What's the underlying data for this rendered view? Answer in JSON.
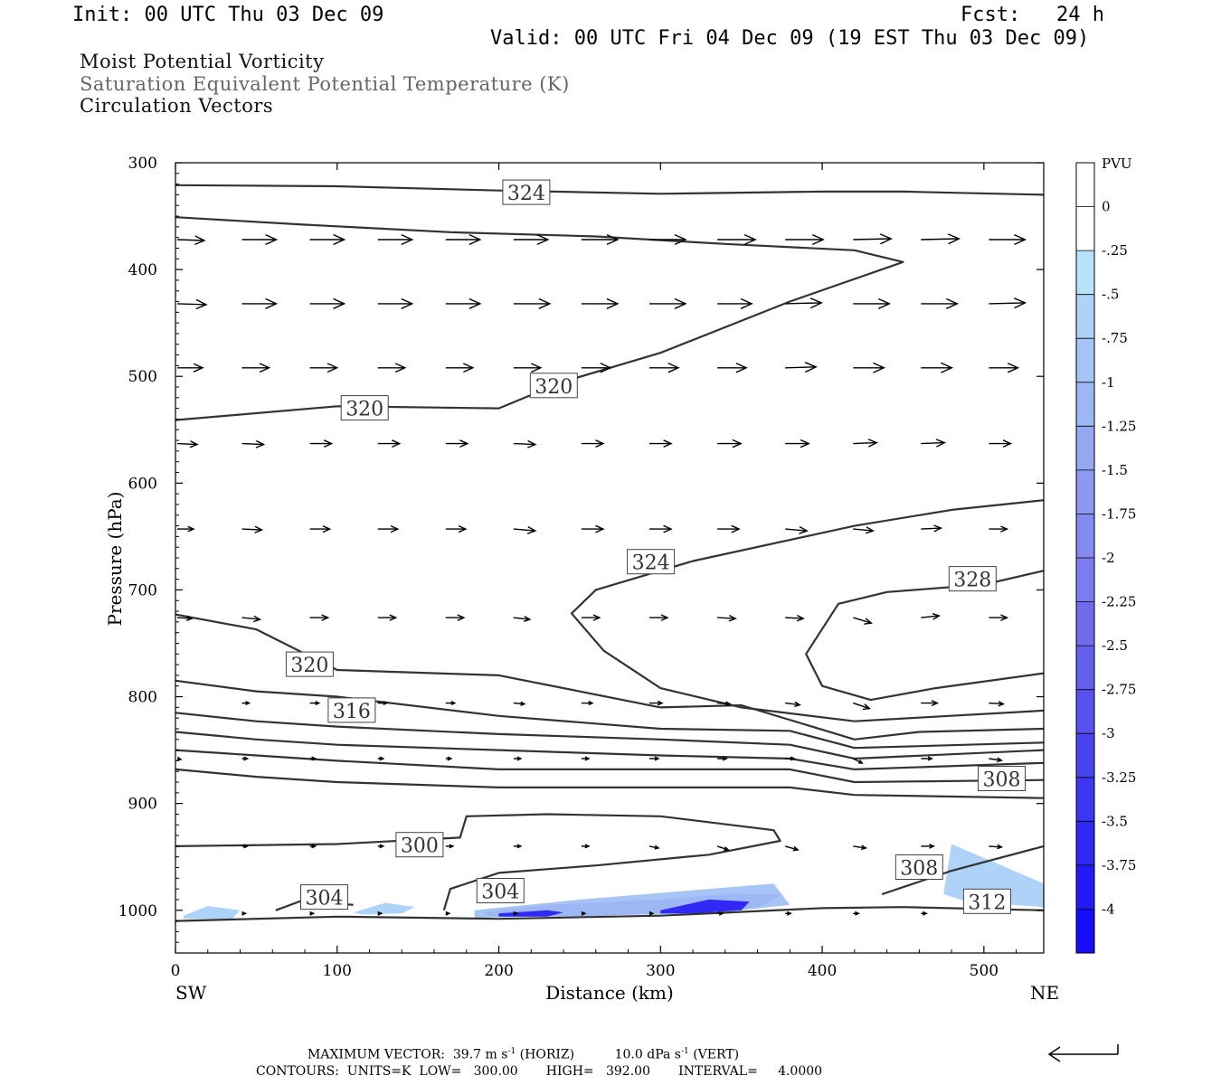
{
  "header": {
    "init": "Init: 00 UTC Thu 03 Dec 09",
    "fcst": "Fcst:   24 h",
    "valid": "Valid: 00 UTC Fri 04 Dec 09 (19 EST Thu 03 Dec 09)"
  },
  "titles": {
    "line1": "Moist Potential Vorticity",
    "line2": "Saturation Equivalent Potential Temperature (K)",
    "line3": "Circulation Vectors"
  },
  "footer": {
    "max_vector_label": "MAXIMUM VECTOR:",
    "horiz_value": "39.7",
    "horiz_unit": "m s",
    "horiz_tag": "(HORIZ)",
    "vert_value": "10.0",
    "vert_unit": "dPa s",
    "vert_tag": "(VERT)",
    "exp": "-1",
    "contours_line": "CONTOURS:  UNITS=K  LOW=   300.00       HIGH=   392.00       INTERVAL=     4.0000"
  },
  "chart_data": {
    "type": "cross-section",
    "xlabel": "Distance (km)",
    "ylabel": "Pressure (hPa)",
    "x_ticks": [
      0,
      100,
      200,
      300,
      400,
      500
    ],
    "y_ticks": [
      300,
      400,
      500,
      600,
      700,
      800,
      900,
      1000
    ],
    "xlim": [
      0,
      537
    ],
    "ylim": [
      1040,
      300
    ],
    "x_end_labels": {
      "left": "SW",
      "right": "NE"
    },
    "colorbar": {
      "unit": "PVU",
      "labels": [
        "0",
        "-.25",
        "-.5",
        "-.75",
        "-1",
        "-1.25",
        "-1.5",
        "-1.75",
        "-2",
        "-2.25",
        "-2.5",
        "-2.75",
        "-3",
        "-3.25",
        "-3.5",
        "-3.75",
        "-4"
      ],
      "colors": [
        "#ffffff",
        "#ffffff",
        "#b7e3fa",
        "#aed2f8",
        "#a6c5f6",
        "#9db6f4",
        "#95a8f2",
        "#8c99f0",
        "#848af0",
        "#7b7cef",
        "#6f6cee",
        "#6360ee",
        "#5752ef",
        "#4a44f0",
        "#3d36f2",
        "#3028f5",
        "#231bf7",
        "#160df9"
      ]
    },
    "contour_labels": [
      {
        "text": "324",
        "x": 217,
        "p": 328
      },
      {
        "text": "320",
        "x": 234,
        "p": 509
      },
      {
        "text": "320",
        "x": 117,
        "p": 530
      },
      {
        "text": "324",
        "x": 294,
        "p": 674
      },
      {
        "text": "328",
        "x": 493,
        "p": 690
      },
      {
        "text": "320",
        "x": 83,
        "p": 770
      },
      {
        "text": "316",
        "x": 109,
        "p": 813
      },
      {
        "text": "308",
        "x": 511,
        "p": 877
      },
      {
        "text": "300",
        "x": 151,
        "p": 939
      },
      {
        "text": "308",
        "x": 460,
        "p": 960
      },
      {
        "text": "304",
        "x": 92,
        "p": 988
      },
      {
        "text": "304",
        "x": 201,
        "p": 982
      },
      {
        "text": "312",
        "x": 502,
        "p": 992
      }
    ],
    "contours": [
      {
        "x": [
          0,
          100,
          200,
          300,
          400,
          450,
          537
        ],
        "p": [
          321,
          322,
          326,
          329,
          327,
          327,
          330
        ]
      },
      {
        "x": [
          0,
          80,
          170,
          260,
          340,
          420,
          450,
          380,
          300,
          240,
          200,
          100,
          0
        ],
        "p": [
          351,
          358,
          365,
          369,
          376,
          382,
          393,
          430,
          478,
          505,
          530,
          528,
          541
        ]
      },
      {
        "x": [
          537,
          480,
          420,
          320,
          260,
          245,
          265,
          300,
          350,
          420,
          537
        ],
        "p": [
          616,
          625,
          640,
          673,
          700,
          722,
          757,
          792,
          810,
          823,
          813
        ]
      },
      {
        "x": [
          537,
          500,
          440,
          410,
          390,
          400,
          430,
          470,
          537
        ],
        "p": [
          682,
          695,
          702,
          713,
          760,
          790,
          803,
          792,
          778
        ]
      },
      {
        "x": [
          0,
          50,
          100,
          200,
          300,
          350,
          420,
          460,
          537
        ],
        "p": [
          723,
          737,
          775,
          780,
          810,
          808,
          840,
          833,
          830
        ]
      },
      {
        "x": [
          0,
          50,
          100,
          200,
          300,
          380,
          420,
          537
        ],
        "p": [
          785,
          795,
          800,
          818,
          830,
          832,
          848,
          843
        ]
      },
      {
        "x": [
          0,
          50,
          100,
          200,
          300,
          380,
          420,
          537
        ],
        "p": [
          815,
          823,
          828,
          835,
          840,
          845,
          858,
          850
        ]
      },
      {
        "x": [
          0,
          50,
          100,
          200,
          300,
          380,
          420,
          537
        ],
        "p": [
          833,
          840,
          845,
          850,
          855,
          858,
          868,
          862
        ]
      },
      {
        "x": [
          0,
          50,
          100,
          200,
          300,
          380,
          420,
          537
        ],
        "p": [
          850,
          855,
          860,
          868,
          868,
          868,
          880,
          878
        ]
      },
      {
        "x": [
          0,
          50,
          100,
          200,
          300,
          380,
          420,
          537
        ],
        "p": [
          868,
          875,
          880,
          885,
          885,
          885,
          892,
          895
        ]
      },
      {
        "x": [
          0,
          100,
          176,
          180,
          230,
          300,
          370,
          374,
          330,
          260,
          200,
          170,
          166
        ],
        "p": [
          940,
          938,
          932,
          912,
          910,
          912,
          925,
          935,
          948,
          958,
          965,
          980,
          1000
        ]
      },
      {
        "x": [
          62,
          80,
          110
        ],
        "p": [
          1000,
          990,
          995
        ]
      },
      {
        "x": [
          437,
          480,
          537
        ],
        "p": [
          985,
          963,
          940
        ]
      },
      {
        "x": [
          0,
          100,
          200,
          300,
          400,
          450,
          537
        ],
        "p": [
          1010,
          1006,
          1008,
          1005,
          998,
          997,
          1000
        ]
      }
    ],
    "pv_shading": [
      {
        "x": [
          5,
          20,
          40,
          35,
          5
        ],
        "p": [
          1005,
          996,
          1000,
          1008,
          1008
        ],
        "level": "-.5"
      },
      {
        "x": [
          110,
          130,
          148,
          140,
          115
        ],
        "p": [
          1002,
          993,
          997,
          1003,
          1004
        ],
        "level": "-.5"
      },
      {
        "x": [
          185,
          250,
          330,
          370,
          380,
          330,
          250,
          185
        ],
        "p": [
          1000,
          990,
          980,
          975,
          995,
          1003,
          1005,
          1007
        ],
        "level": "-.75"
      },
      {
        "x": [
          190,
          230,
          270,
          300,
          340,
          375,
          360,
          300,
          250,
          195
        ],
        "p": [
          1002,
          995,
          992,
          990,
          985,
          985,
          998,
          1003,
          1006,
          1006
        ],
        "level": "-1"
      },
      {
        "x": [
          200,
          230,
          240,
          230,
          200
        ],
        "p": [
          1003,
          1000,
          1002,
          1006,
          1006
        ],
        "level": "-3.5"
      },
      {
        "x": [
          300,
          330,
          355,
          350,
          320,
          300
        ],
        "p": [
          1000,
          990,
          992,
          1000,
          1003,
          1003
        ],
        "level": "-3.5"
      },
      {
        "x": [
          475,
          480,
          537,
          537,
          490,
          475
        ],
        "p": [
          985,
          938,
          975,
          997,
          992,
          985
        ],
        "level": "-.5"
      }
    ],
    "vectors": [
      {
        "p": 372,
        "x": [
          0,
          40,
          82,
          124,
          166,
          208,
          250,
          292,
          334,
          376,
          418,
          460,
          502
        ],
        "dx": [
          30,
          38,
          38,
          38,
          38,
          38,
          40,
          40,
          42,
          42,
          42,
          42,
          40
        ],
        "dy": [
          1,
          0,
          0,
          0,
          0,
          0,
          0,
          0,
          0,
          0,
          -1,
          -1,
          0
        ]
      },
      {
        "p": 432,
        "x": [
          0,
          40,
          82,
          124,
          166,
          208,
          250,
          292,
          334,
          376,
          418,
          460,
          502
        ],
        "dx": [
          32,
          38,
          38,
          38,
          38,
          40,
          40,
          40,
          38,
          40,
          40,
          40,
          40
        ],
        "dy": [
          1,
          0,
          0,
          0,
          0,
          0,
          0,
          0,
          0,
          -1,
          0,
          0,
          -1
        ]
      },
      {
        "p": 492,
        "x": [
          0,
          40,
          82,
          124,
          166,
          208,
          250,
          292,
          334,
          376,
          418,
          460,
          502
        ],
        "dx": [
          28,
          30,
          30,
          30,
          30,
          30,
          32,
          32,
          32,
          34,
          34,
          34,
          32
        ],
        "dy": [
          0,
          0,
          0,
          0,
          0,
          0,
          0,
          0,
          0,
          -1,
          0,
          0,
          0
        ]
      },
      {
        "p": 563,
        "x": [
          0,
          40,
          82,
          124,
          166,
          208,
          250,
          292,
          334,
          376,
          418,
          460,
          502
        ],
        "dx": [
          22,
          24,
          24,
          24,
          24,
          24,
          24,
          24,
          26,
          26,
          26,
          26,
          24
        ],
        "dy": [
          1,
          1,
          0,
          0,
          0,
          1,
          0,
          0,
          0,
          0,
          -1,
          -1,
          0
        ]
      },
      {
        "p": 643,
        "x": [
          0,
          40,
          82,
          124,
          166,
          208,
          250,
          292,
          334,
          376,
          418,
          460,
          502
        ],
        "dx": [
          18,
          22,
          22,
          22,
          22,
          24,
          24,
          24,
          24,
          24,
          22,
          22,
          20
        ],
        "dy": [
          0,
          1,
          0,
          0,
          0,
          2,
          0,
          0,
          0,
          2,
          2,
          -1,
          0
        ]
      },
      {
        "p": 726,
        "x": [
          0,
          40,
          82,
          124,
          166,
          208,
          250,
          292,
          334,
          376,
          418,
          460,
          502
        ],
        "dx": [
          16,
          20,
          20,
          20,
          20,
          18,
          20,
          20,
          20,
          20,
          20,
          20,
          20
        ],
        "dy": [
          1,
          2,
          0,
          0,
          0,
          2,
          0,
          0,
          1,
          1,
          6,
          -2,
          0
        ]
      },
      {
        "p": 806,
        "x": [
          40,
          82,
          124,
          166,
          208,
          250,
          292,
          334,
          376,
          418,
          460,
          502
        ],
        "dx": [
          8,
          10,
          10,
          10,
          12,
          12,
          14,
          14,
          16,
          18,
          18,
          16
        ],
        "dy": [
          0,
          0,
          0,
          0,
          1,
          0,
          0,
          1,
          2,
          6,
          0,
          1
        ]
      },
      {
        "p": 858,
        "x": [
          0,
          40,
          82,
          124,
          166,
          208,
          250,
          292,
          334,
          376,
          418,
          460,
          502
        ],
        "dx": [
          4,
          6,
          6,
          6,
          6,
          8,
          8,
          10,
          10,
          10,
          10,
          12,
          14
        ],
        "dy": [
          1,
          0,
          0,
          0,
          0,
          0,
          0,
          0,
          0,
          0,
          5,
          0,
          2
        ]
      },
      {
        "p": 940,
        "x": [
          40,
          82,
          124,
          166,
          208,
          250,
          292,
          334,
          376,
          418,
          460,
          502
        ],
        "dx": [
          6,
          6,
          6,
          8,
          8,
          8,
          10,
          12,
          14,
          14,
          14,
          14
        ],
        "dy": [
          0,
          0,
          0,
          0,
          0,
          0,
          2,
          4,
          4,
          2,
          0,
          1
        ]
      },
      {
        "p": 1003,
        "x": [
          40,
          82,
          124,
          166,
          208,
          250,
          292,
          334,
          376,
          418,
          460
        ],
        "dx": [
          4,
          4,
          4,
          4,
          4,
          4,
          4,
          6,
          6,
          6,
          6
        ],
        "dy": [
          0,
          0,
          0,
          0,
          0,
          0,
          0,
          0,
          0,
          0,
          0
        ]
      }
    ]
  }
}
